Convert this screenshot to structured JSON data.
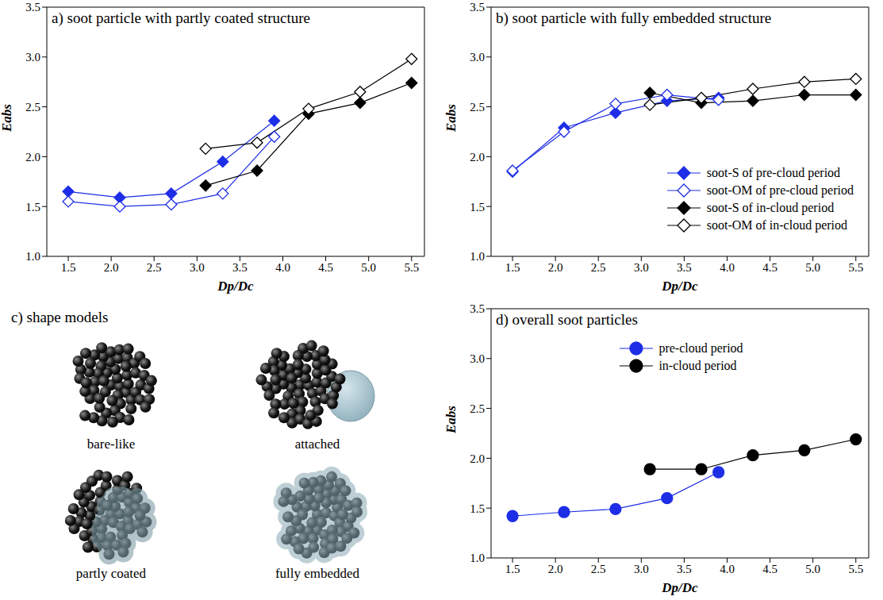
{
  "chart_data": [
    {
      "type": "line",
      "title": "a) soot particle with partly coated structure",
      "xlabel": "Dp/Dc",
      "ylabel": "Eabs",
      "xlim": [
        1.25,
        5.65
      ],
      "ylim": [
        1,
        3.5
      ],
      "xticks": [
        1.5,
        {
          "value": 2,
          "label": "2.0"
        },
        2.5,
        {
          "value": 3,
          "label": "3.0"
        },
        3.5,
        {
          "value": 4,
          "label": "4.0"
        },
        4.5,
        {
          "value": 5,
          "label": "5.0"
        },
        5.5
      ],
      "yticks": [
        {
          "value": 1,
          "label": "1.0"
        },
        1.5,
        {
          "value": 2,
          "label": "2.0"
        },
        2.5,
        {
          "value": 3,
          "label": "3.0"
        },
        3.5
      ],
      "series": [
        {
          "color": "#1e2ee6",
          "marker": "diamond",
          "x": [
            1.5,
            2.1,
            2.7,
            3.3,
            3.9
          ],
          "values": [
            1.65,
            1.59,
            1.63,
            1.95,
            2.36
          ]
        },
        {
          "color": "#1e2ee6",
          "marker": "open_diamond",
          "x": [
            1.5,
            2.1,
            2.7,
            3.3,
            3.9
          ],
          "values": [
            1.55,
            1.5,
            1.52,
            1.63,
            2.2
          ]
        },
        {
          "color": "#000000",
          "marker": "diamond",
          "x": [
            3.1,
            3.7,
            4.3,
            4.9,
            5.5
          ],
          "values": [
            1.71,
            1.86,
            2.43,
            2.54,
            2.74
          ]
        },
        {
          "color": "#000000",
          "marker": "open_diamond",
          "x": [
            3.1,
            3.7,
            4.3,
            4.9,
            5.5
          ],
          "values": [
            2.08,
            2.14,
            2.48,
            2.65,
            2.98
          ]
        }
      ]
    },
    {
      "type": "line",
      "title": "b) soot particle with fully embedded structure",
      "xlabel": "Dp/Dc",
      "ylabel": "Eabs",
      "xlim": [
        1.25,
        5.65
      ],
      "ylim": [
        1,
        3.5
      ],
      "xticks": [
        1.5,
        {
          "value": 2,
          "label": "2.0"
        },
        2.5,
        {
          "value": 3,
          "label": "3.0"
        },
        3.5,
        {
          "value": 4,
          "label": "4.0"
        },
        4.5,
        {
          "value": 5,
          "label": "5.0"
        },
        5.5
      ],
      "yticks": [
        {
          "value": 1,
          "label": "1.0"
        },
        1.5,
        {
          "value": 2,
          "label": "2.0"
        },
        2.5,
        {
          "value": 3,
          "label": "3.0"
        },
        3.5
      ],
      "legend": "lower right",
      "series": [
        {
          "name": "soot-S of pre-cloud period",
          "color": "#1e2ee6",
          "marker": "diamond",
          "x": [
            1.5,
            2.1,
            2.7,
            3.3,
            3.9
          ],
          "values": [
            1.85,
            2.29,
            2.44,
            2.56,
            2.59
          ]
        },
        {
          "name": "soot-OM of pre-cloud period",
          "color": "#1e2ee6",
          "marker": "open_diamond",
          "x": [
            1.5,
            2.1,
            2.7,
            3.3,
            3.9
          ],
          "values": [
            1.86,
            2.25,
            2.53,
            2.62,
            2.57
          ]
        },
        {
          "name": "soot-S of in-cloud period",
          "color": "#000000",
          "marker": "diamond",
          "x": [
            3.1,
            3.7,
            4.3,
            4.9,
            5.5
          ],
          "values": [
            2.64,
            2.54,
            2.56,
            2.62,
            2.62
          ]
        },
        {
          "name": "soot-OM of in-cloud period",
          "color": "#000000",
          "marker": "open_diamond",
          "x": [
            3.1,
            3.7,
            4.3,
            4.9,
            5.5
          ],
          "values": [
            2.52,
            2.59,
            2.68,
            2.75,
            2.78
          ]
        }
      ]
    },
    {
      "type": "line",
      "title": "d) overall soot particles",
      "xlabel": "Dp/Dc",
      "ylabel": "Eabs",
      "xlim": [
        1.25,
        5.65
      ],
      "ylim": [
        1,
        3.5
      ],
      "xticks": [
        1.5,
        {
          "value": 2,
          "label": "2.0"
        },
        2.5,
        {
          "value": 3,
          "label": "3.0"
        },
        3.5,
        {
          "value": 4,
          "label": "4.0"
        },
        4.5,
        {
          "value": 5,
          "label": "5.0"
        },
        5.5
      ],
      "yticks": [
        {
          "value": 1,
          "label": "1.0"
        },
        1.5,
        {
          "value": 2,
          "label": "2.0"
        },
        2.5,
        {
          "value": 3,
          "label": "3.0"
        },
        3.5
      ],
      "legend": "upper center",
      "series": [
        {
          "name": "pre-cloud period",
          "color": "#1e2ee6",
          "marker": "circle",
          "x": [
            1.5,
            2.1,
            2.7,
            3.3,
            3.9
          ],
          "values": [
            1.42,
            1.46,
            1.49,
            1.6,
            1.86
          ]
        },
        {
          "name": "in-cloud period",
          "color": "#000000",
          "marker": "circle",
          "x": [
            3.1,
            3.7,
            4.3,
            4.9,
            5.5
          ],
          "values": [
            1.89,
            1.89,
            2.03,
            2.08,
            2.19
          ]
        }
      ]
    }
  ],
  "diagram": {
    "title": "c) shape models",
    "labels": [
      "bare-like",
      "attached",
      "partly coated",
      "fully embedded"
    ]
  }
}
